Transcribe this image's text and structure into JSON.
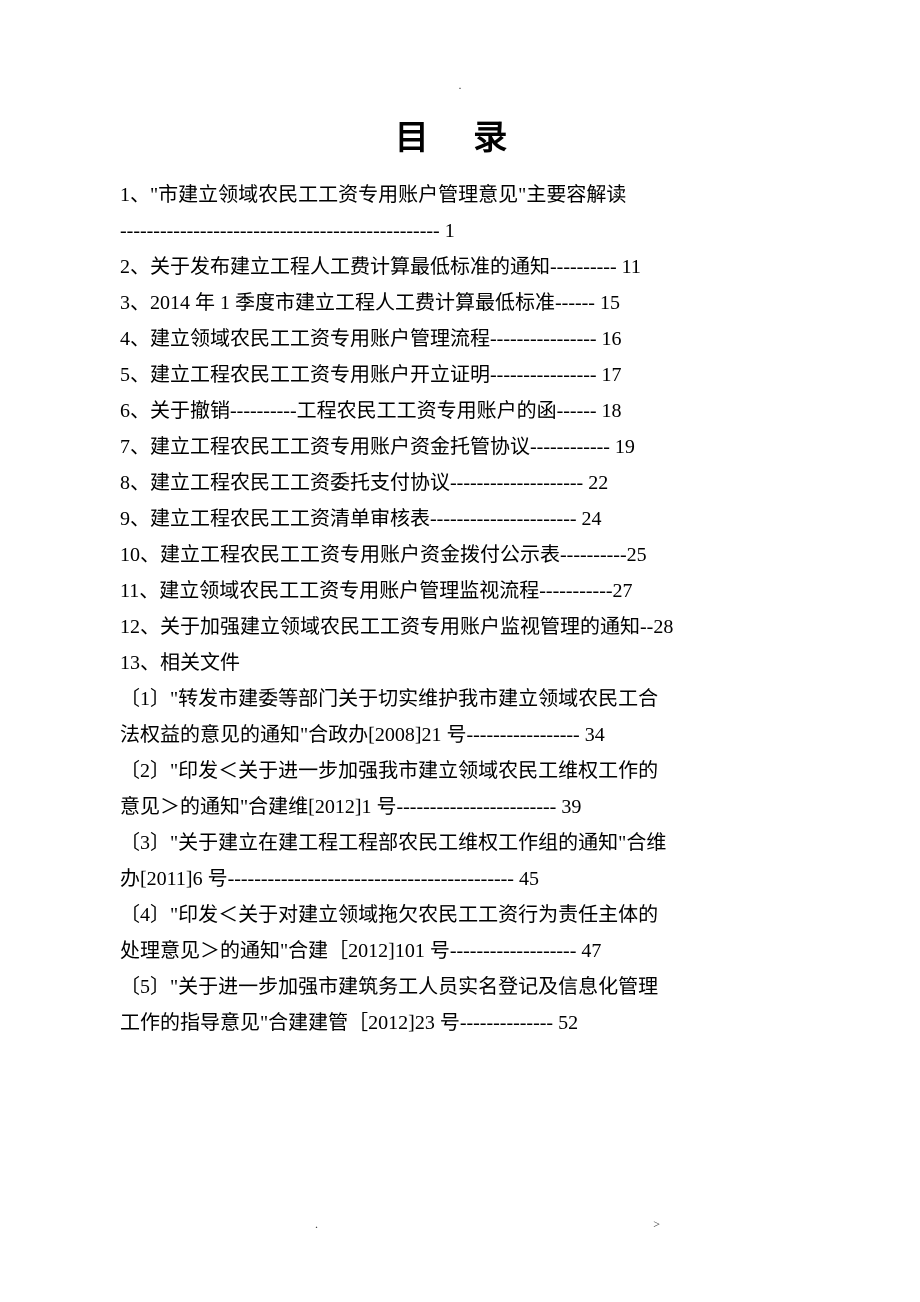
{
  "title": "目 录",
  "topDot": ".",
  "footerLeft": ".",
  "footerRight": ">",
  "lines": [
    "1、\"市建立领域农民工工资专用账户管理意见\"主要容解读",
    "------------------------------------------------ 1",
    "2、关于发布建立工程人工费计算最低标准的通知---------- 11",
    "3、2014 年 1 季度市建立工程人工费计算最低标准------ 15",
    "4、建立领域农民工工资专用账户管理流程---------------- 16",
    "5、建立工程农民工工资专用账户开立证明---------------- 17",
    "6、关于撤销----------工程农民工工资专用账户的函------ 18",
    "7、建立工程农民工工资专用账户资金托管协议------------ 19",
    "8、建立工程农民工工资委托支付协议-------------------- 22",
    "9、建立工程农民工工资清单审核表---------------------- 24",
    "10、建立工程农民工工资专用账户资金拨付公示表----------25",
    "11、建立领域农民工工资专用账户管理监视流程-----------27",
    "12、关于加强建立领域农民工工资专用账户监视管理的通知--28",
    "13、相关文件",
    "〔1〕\"转发市建委等部门关于切实维护我市建立领域农民工合",
    "法权益的意见的通知\"合政办[2008]21 号----------------- 34",
    "〔2〕\"印发＜关于进一步加强我市建立领域农民工维权工作的",
    "意见＞的通知\"合建维[2012]1 号------------------------ 39",
    "〔3〕\"关于建立在建工程工程部农民工维权工作组的通知\"合维",
    "办[2011]6 号------------------------------------------- 45",
    "〔4〕\"印发＜关于对建立领域拖欠农民工工资行为责任主体的",
    "处理意见＞的通知\"合建［2012]101 号------------------- 47",
    "〔5〕\"关于进一步加强市建筑务工人员实名登记及信息化管理",
    "工作的指导意见\"合建建管［2012]23 号-------------- 52"
  ],
  "colors": {
    "text": "#000000",
    "background": "#ffffff"
  },
  "typography": {
    "title_fontsize": 34,
    "body_fontsize": 20,
    "line_height": 1.8,
    "font_family": "SimSun"
  }
}
